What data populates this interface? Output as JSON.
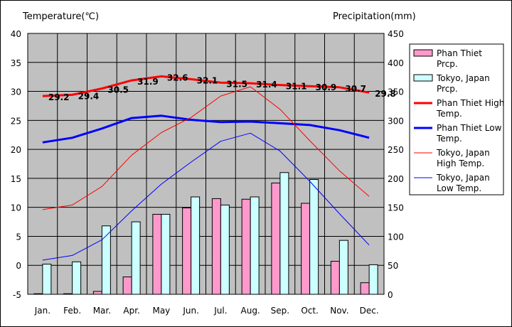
{
  "chart_data": {
    "type": "bar+line",
    "y_left_label": "Temperature(℃)",
    "y_right_label": "Precipitation(mm)",
    "y_left_range": [
      -5,
      40
    ],
    "y_right_range": [
      0,
      450
    ],
    "y_left_ticks": [
      "40",
      "35",
      "30",
      "25",
      "20",
      "15",
      "10",
      "5",
      "0",
      "-5"
    ],
    "y_right_ticks": [
      "450",
      "400",
      "350",
      "300",
      "250",
      "200",
      "150",
      "100",
      "50",
      "0"
    ],
    "categories": [
      "Jan.",
      "Feb.",
      "Mar.",
      "Apr.",
      "May",
      "Jun.",
      "Jul.",
      "Aug.",
      "Sep.",
      "Oct.",
      "Nov.",
      "Dec."
    ],
    "grid": true,
    "legend_position": "right",
    "series": [
      {
        "name": "Phan Thiet Prcp.",
        "kind": "bar",
        "axis": "right",
        "color": "#ff99cc",
        "values": [
          1,
          1,
          5,
          30,
          138,
          149,
          165,
          164,
          192,
          157,
          57,
          20
        ]
      },
      {
        "name": "Tokyo, Japan Prcp.",
        "kind": "bar",
        "axis": "right",
        "color": "#ccffff",
        "values": [
          52,
          56,
          118,
          125,
          138,
          168,
          154,
          168,
          210,
          198,
          93,
          51
        ]
      },
      {
        "name": "Phan Thiet High Temp.",
        "kind": "line",
        "axis": "left",
        "color": "#ff0000",
        "width": 3,
        "values": [
          29.2,
          29.4,
          30.5,
          31.9,
          32.6,
          32.1,
          31.5,
          31.4,
          31.1,
          30.9,
          30.7,
          29.8
        ],
        "labels": [
          "29.2",
          "29.4",
          "30.5",
          "31.9",
          "32.6",
          "32.1",
          "31.5",
          "31.4",
          "31.1",
          "30.9",
          "30.7",
          "29.8"
        ]
      },
      {
        "name": "Phan Thiet Low Temp.",
        "kind": "line",
        "axis": "left",
        "color": "#0000ff",
        "width": 3,
        "values": [
          21.2,
          22.0,
          23.6,
          25.4,
          25.8,
          25.1,
          24.7,
          24.8,
          24.5,
          24.2,
          23.3,
          22.0
        ]
      },
      {
        "name": "Tokyo, Japan High Temp.",
        "kind": "line",
        "axis": "left",
        "color": "#ff0000",
        "width": 1,
        "values": [
          9.6,
          10.4,
          13.6,
          19.0,
          22.9,
          25.5,
          29.2,
          30.8,
          26.9,
          21.5,
          16.3,
          11.9
        ]
      },
      {
        "name": "Tokyo, Japan Low Temp.",
        "kind": "line",
        "axis": "left",
        "color": "#0000ff",
        "width": 1,
        "values": [
          0.9,
          1.7,
          4.4,
          9.4,
          14.0,
          17.8,
          21.4,
          22.8,
          19.7,
          14.5,
          8.9,
          3.5
        ]
      }
    ],
    "legend": [
      "Phan Thiet\nPrcp.",
      "Tokyo, Japan\nPrcp.",
      "Phan Thiet High\nTemp.",
      "Phan Thiet Low\nTemp.",
      "Tokyo, Japan\nHigh Temp.",
      "Tokyo, Japan\nLow Temp."
    ]
  }
}
